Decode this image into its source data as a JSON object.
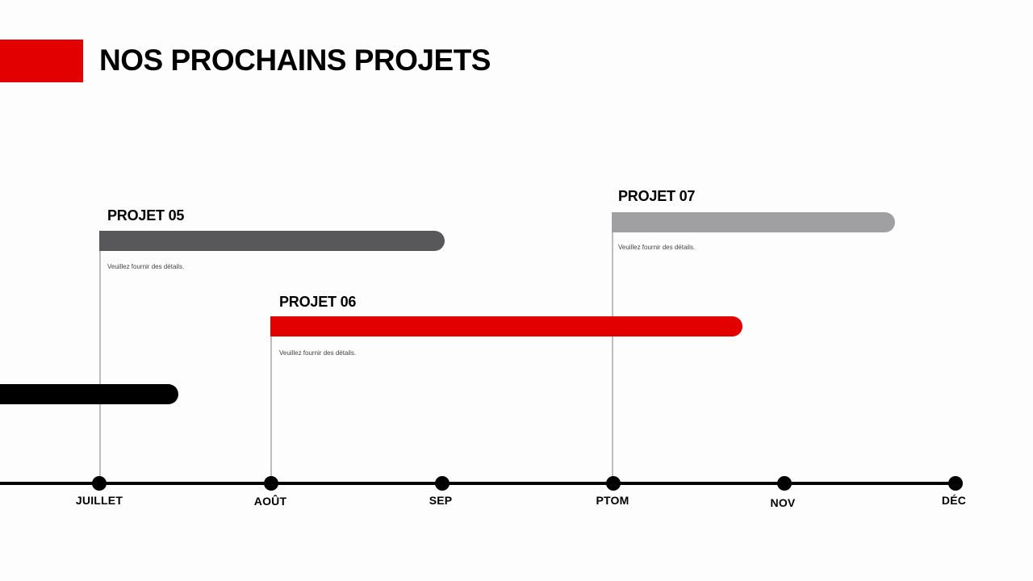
{
  "header": {
    "title": "NOS PROCHAINS PROJETS",
    "accent_color": "#e30000"
  },
  "projects": [
    {
      "title": "",
      "detail": "",
      "bar_color": "#000000"
    },
    {
      "title": "PROJET 05",
      "detail": "Veuillez fournir des détails.",
      "bar_color": "#58585a"
    },
    {
      "title": "PROJET 06",
      "detail": "Veuillez fournir des détails.",
      "bar_color": "#e30000"
    },
    {
      "title": "PROJET 07",
      "detail": "Veuillez fournir des détails.",
      "bar_color": "#a09fa2"
    }
  ],
  "timeline": {
    "months": [
      "JUILLET",
      "AOÛT",
      "SEP",
      "PTOM",
      "NOV",
      "DÉC"
    ]
  }
}
